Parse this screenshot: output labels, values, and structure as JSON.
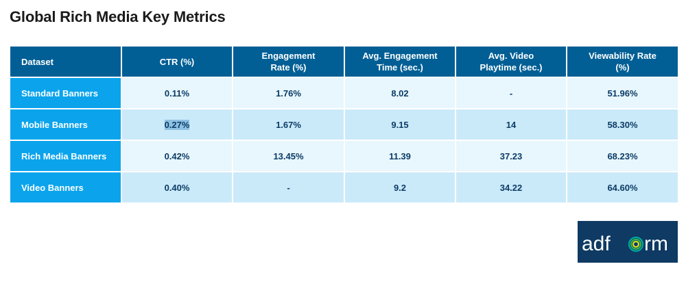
{
  "page": {
    "title": "Global Rich Media Key Metrics"
  },
  "table": {
    "headers": [
      [
        "Dataset"
      ],
      [
        "CTR (%)"
      ],
      [
        "Engagement",
        "Rate (%)"
      ],
      [
        "Avg. Engagement",
        "Time (sec.)"
      ],
      [
        "Avg. Video",
        "Playtime (sec.)"
      ],
      [
        "Viewability Rate",
        "(%)"
      ]
    ],
    "rows": [
      {
        "label": "Standard Banners",
        "ctr": "0.11%",
        "engagement_rate": "1.76%",
        "avg_engagement_time": "8.02",
        "avg_video_playtime": "-",
        "viewability_rate": "51.96%"
      },
      {
        "label": "Mobile Banners",
        "ctr": "0.27%",
        "engagement_rate": "1.67%",
        "avg_engagement_time": "9.15",
        "avg_video_playtime": "14",
        "viewability_rate": "58.30%"
      },
      {
        "label": "Rich Media Banners",
        "ctr": "0.42%",
        "engagement_rate": "13.45%",
        "avg_engagement_time": "11.39",
        "avg_video_playtime": "37.23",
        "viewability_rate": "68.23%"
      },
      {
        "label": "Video Banners",
        "ctr": "0.40%",
        "engagement_rate": "-",
        "avg_engagement_time": "9.2",
        "avg_video_playtime": "34.22",
        "viewability_rate": "64.60%"
      }
    ]
  },
  "logo": {
    "text": "adform",
    "icon": "adform-logo"
  },
  "colors": {
    "header_bg": "#015f95",
    "row_label_bg": "#0ba4ec",
    "row_light_bg": "#e8f6fd",
    "row_dark_bg": "#cbeaf9",
    "value_text": "#0b3c66",
    "logo_bg": "#0e3a63",
    "logo_ring_inner": "#d9e021",
    "logo_ring_mid": "#39b54a",
    "logo_ring_outer": "#00a99d"
  }
}
